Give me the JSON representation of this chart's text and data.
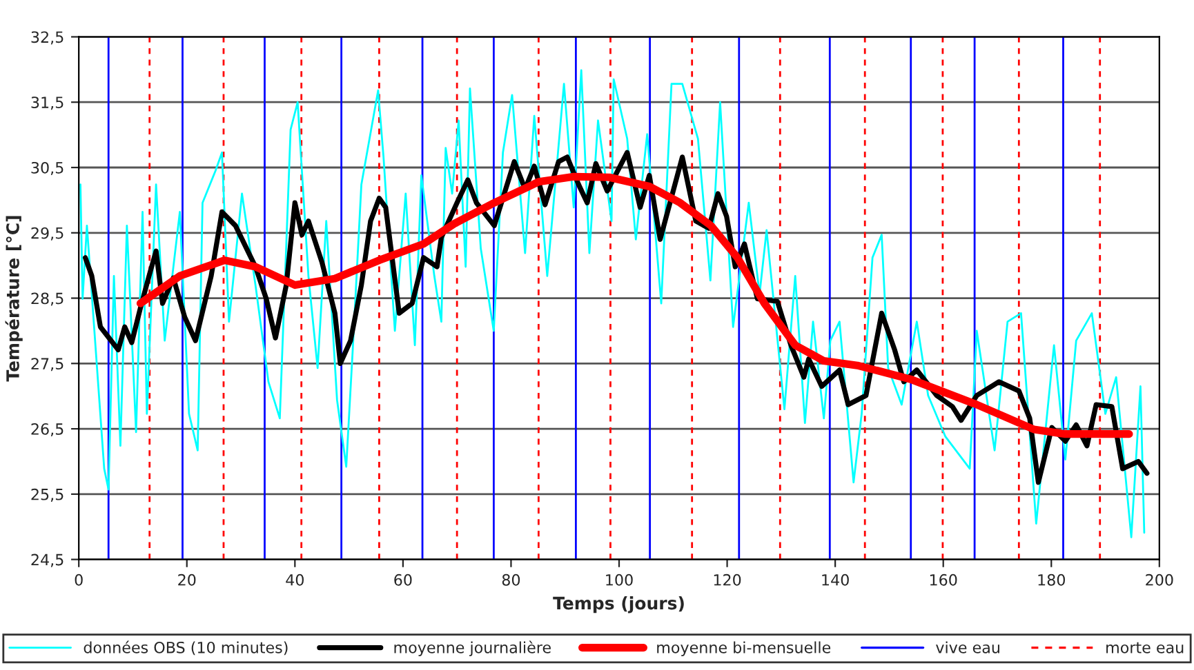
{
  "chart_data": {
    "type": "line",
    "xlabel": "Temps (jours)",
    "ylabel": "Température [°C]",
    "xlim": [
      0,
      200
    ],
    "xticks": [
      0,
      20,
      40,
      60,
      80,
      100,
      120,
      140,
      160,
      180,
      200
    ],
    "ylim": [
      24.5,
      32.5
    ],
    "yticks": [
      {
        "value": 24.5,
        "label": "24,5"
      },
      {
        "value": 25.5,
        "label": "25,5"
      },
      {
        "value": 26.5,
        "label": "26,5"
      },
      {
        "value": 27.5,
        "label": "27,5"
      },
      {
        "value": 28.5,
        "label": "28,5"
      },
      {
        "value": 29.5,
        "label": "29,5"
      },
      {
        "value": 30.5,
        "label": "30,5"
      },
      {
        "value": 31.5,
        "label": "31,5"
      },
      {
        "value": 32.5,
        "label": "32,5"
      }
    ],
    "grid": "y",
    "legend": "bottom",
    "marker": "none",
    "series": [
      {
        "name": "données OBS (10 minutes)",
        "color": "#00ffff",
        "line_style": "solid",
        "x": [
          0.3,
          0.7,
          1.5,
          4.7,
          5.5,
          6.5,
          7.7,
          8.9,
          10.6,
          11.8,
          12.6,
          14.3,
          15.9,
          18.7,
          20.4,
          22.0,
          22.9,
          25.3,
          26.5,
          27.8,
          30.2,
          32.7,
          35.1,
          37.2,
          39.2,
          40.5,
          42.5,
          44.2,
          45.8,
          47.8,
          49.5,
          50.7,
          52.3,
          55.4,
          56.4,
          58.5,
          60.5,
          62.2,
          63.4,
          65.8,
          67.1,
          67.9,
          69.1,
          70.3,
          71.6,
          72.4,
          74.4,
          76.8,
          78.5,
          80.2,
          82.6,
          84.3,
          86.7,
          89.8,
          91.6,
          93.0,
          94.5,
          96.1,
          98.6,
          99.0,
          101.5,
          103.1,
          105.2,
          107.8,
          109.7,
          111.7,
          114.6,
          116.9,
          118.7,
          121.1,
          124.0,
          126.0,
          127.3,
          130.6,
          132.6,
          134.4,
          135.9,
          137.9,
          139.1,
          140.8,
          143.4,
          144.9,
          146.9,
          148.6,
          149.8,
          152.3,
          155.1,
          157.2,
          160.4,
          164.9,
          166.2,
          169.5,
          171.9,
          174.4,
          177.2,
          180.5,
          182.6,
          184.6,
          187.5,
          190.0,
          192.0,
          194.8,
          196.5,
          197.2
        ],
        "values": [
          30.24,
          28.49,
          29.61,
          25.89,
          25.57,
          28.84,
          26.24,
          29.61,
          26.45,
          29.82,
          26.73,
          30.24,
          27.85,
          29.82,
          26.73,
          26.17,
          29.96,
          30.45,
          30.73,
          28.14,
          30.1,
          28.7,
          27.22,
          26.66,
          31.08,
          31.5,
          28.84,
          27.43,
          29.68,
          26.94,
          25.92,
          27.71,
          30.24,
          31.68,
          30.66,
          28.0,
          30.1,
          27.78,
          30.38,
          28.84,
          28.14,
          30.8,
          30.1,
          31.22,
          28.98,
          31.71,
          29.26,
          28.0,
          30.73,
          31.61,
          29.19,
          31.29,
          28.84,
          31.78,
          29.89,
          31.99,
          29.19,
          31.22,
          29.68,
          31.85,
          30.94,
          29.4,
          31.01,
          28.42,
          31.78,
          31.78,
          30.94,
          28.77,
          31.5,
          28.06,
          29.96,
          28.56,
          29.54,
          26.8,
          28.84,
          26.59,
          28.14,
          26.66,
          27.85,
          28.14,
          25.68,
          26.73,
          29.12,
          29.47,
          27.43,
          26.87,
          28.14,
          27.01,
          26.38,
          25.89,
          28.0,
          26.17,
          28.14,
          28.27,
          25.05,
          27.78,
          26.03,
          27.85,
          28.27,
          26.73,
          27.29,
          24.84,
          27.15,
          24.91
        ]
      },
      {
        "name": "moyenne journalière",
        "color": "#000000",
        "line_style": "solid",
        "x": [
          1.2,
          2.4,
          4.0,
          7.3,
          8.5,
          9.8,
          11.4,
          13.0,
          14.3,
          15.5,
          17.5,
          19.6,
          21.6,
          24.5,
          26.5,
          29.0,
          32.7,
          34.7,
          36.4,
          38.4,
          40.0,
          41.3,
          42.5,
          45.0,
          47.4,
          48.4,
          50.3,
          52.3,
          54.0,
          55.6,
          56.8,
          59.3,
          61.7,
          63.8,
          66.3,
          67.1,
          70.0,
          72.0,
          73.6,
          76.9,
          80.6,
          82.6,
          84.3,
          86.3,
          88.8,
          90.4,
          92.5,
          94.1,
          95.7,
          97.8,
          101.5,
          103.9,
          105.6,
          107.6,
          111.7,
          114.2,
          116.6,
          118.3,
          119.9,
          121.5,
          123.2,
          125.6,
          129.3,
          131.8,
          134.2,
          135.1,
          137.5,
          140.8,
          142.4,
          145.7,
          148.6,
          151.0,
          152.7,
          155.1,
          158.8,
          161.7,
          163.3,
          166.2,
          170.3,
          174.0,
          176.0,
          177.6,
          180.1,
          182.6,
          184.6,
          186.6,
          188.3,
          191.2,
          193.2,
          196.1,
          197.7
        ],
        "values": [
          29.12,
          28.84,
          28.06,
          27.71,
          28.06,
          27.82,
          28.35,
          28.84,
          29.22,
          28.42,
          28.81,
          28.21,
          27.85,
          28.84,
          29.82,
          29.61,
          28.98,
          28.49,
          27.89,
          28.7,
          29.96,
          29.47,
          29.68,
          29.05,
          28.27,
          27.5,
          27.85,
          28.7,
          29.68,
          30.03,
          29.89,
          28.27,
          28.42,
          29.12,
          28.98,
          29.43,
          29.96,
          30.31,
          29.96,
          29.61,
          30.59,
          30.17,
          30.52,
          29.93,
          30.59,
          30.66,
          30.24,
          29.96,
          30.56,
          30.14,
          30.73,
          29.89,
          30.38,
          29.4,
          30.66,
          29.68,
          29.57,
          30.1,
          29.75,
          28.98,
          29.33,
          28.49,
          28.45,
          27.78,
          27.29,
          27.57,
          27.15,
          27.4,
          26.87,
          27.01,
          28.27,
          27.71,
          27.22,
          27.4,
          27.01,
          26.84,
          26.63,
          27.01,
          27.22,
          27.08,
          26.66,
          25.68,
          26.52,
          26.31,
          26.56,
          26.24,
          26.87,
          26.84,
          25.89,
          26.0,
          25.82
        ]
      },
      {
        "name": "moyenne bi-mensuelle",
        "color": "#ff0000",
        "line_style": "solid",
        "x": [
          11.4,
          18.7,
          27.0,
          32.7,
          40.0,
          47.4,
          55.6,
          63.8,
          69.5,
          76.9,
          85.1,
          91.6,
          98.2,
          105.6,
          111.3,
          117.0,
          121.9,
          126.9,
          132.6,
          137.9,
          144.1,
          153.9,
          166.2,
          176.8,
          182.6,
          194.4
        ],
        "values": [
          28.42,
          28.84,
          29.08,
          28.98,
          28.7,
          28.8,
          29.08,
          29.33,
          29.64,
          29.96,
          30.28,
          30.36,
          30.35,
          30.21,
          29.96,
          29.61,
          29.12,
          28.42,
          27.78,
          27.54,
          27.47,
          27.26,
          26.87,
          26.49,
          26.42,
          26.42
        ]
      }
    ],
    "ref_lines": [
      {
        "axis": "x",
        "value": 5.5,
        "label": "vive eau",
        "color": "#0000ff",
        "line_style": "solid"
      },
      {
        "axis": "x",
        "value": 19.2,
        "color": "#0000ff",
        "line_style": "solid"
      },
      {
        "axis": "x",
        "value": 34.4,
        "color": "#0000ff",
        "line_style": "solid"
      },
      {
        "axis": "x",
        "value": 48.6,
        "color": "#0000ff",
        "line_style": "solid"
      },
      {
        "axis": "x",
        "value": 63.6,
        "color": "#0000ff",
        "line_style": "solid"
      },
      {
        "axis": "x",
        "value": 76.8,
        "color": "#0000ff",
        "line_style": "solid"
      },
      {
        "axis": "x",
        "value": 92.0,
        "color": "#0000ff",
        "line_style": "solid"
      },
      {
        "axis": "x",
        "value": 105.7,
        "color": "#0000ff",
        "line_style": "solid"
      },
      {
        "axis": "x",
        "value": 122.2,
        "color": "#0000ff",
        "line_style": "solid"
      },
      {
        "axis": "x",
        "value": 139.0,
        "color": "#0000ff",
        "line_style": "solid"
      },
      {
        "axis": "x",
        "value": 154.0,
        "color": "#0000ff",
        "line_style": "solid"
      },
      {
        "axis": "x",
        "value": 165.8,
        "color": "#0000ff",
        "line_style": "solid"
      },
      {
        "axis": "x",
        "value": 182.2,
        "color": "#0000ff",
        "line_style": "solid"
      },
      {
        "axis": "x",
        "value": 13.1,
        "label": "morte eau",
        "color": "#ff0000",
        "line_style": "dashed"
      },
      {
        "axis": "x",
        "value": 26.8,
        "color": "#ff0000",
        "line_style": "dashed"
      },
      {
        "axis": "x",
        "value": 41.2,
        "color": "#ff0000",
        "line_style": "dashed"
      },
      {
        "axis": "x",
        "value": 55.6,
        "color": "#ff0000",
        "line_style": "dashed"
      },
      {
        "axis": "x",
        "value": 70.0,
        "color": "#ff0000",
        "line_style": "dashed"
      },
      {
        "axis": "x",
        "value": 85.1,
        "color": "#ff0000",
        "line_style": "dashed"
      },
      {
        "axis": "x",
        "value": 98.4,
        "color": "#ff0000",
        "line_style": "dashed"
      },
      {
        "axis": "x",
        "value": 113.5,
        "color": "#ff0000",
        "line_style": "dashed"
      },
      {
        "axis": "x",
        "value": 129.8,
        "color": "#ff0000",
        "line_style": "dashed"
      },
      {
        "axis": "x",
        "value": 145.5,
        "color": "#ff0000",
        "line_style": "dashed"
      },
      {
        "axis": "x",
        "value": 159.9,
        "color": "#ff0000",
        "line_style": "dashed"
      },
      {
        "axis": "x",
        "value": 174.0,
        "color": "#ff0000",
        "line_style": "dashed"
      },
      {
        "axis": "x",
        "value": 189.0,
        "color": "#ff0000",
        "line_style": "dashed"
      }
    ]
  }
}
